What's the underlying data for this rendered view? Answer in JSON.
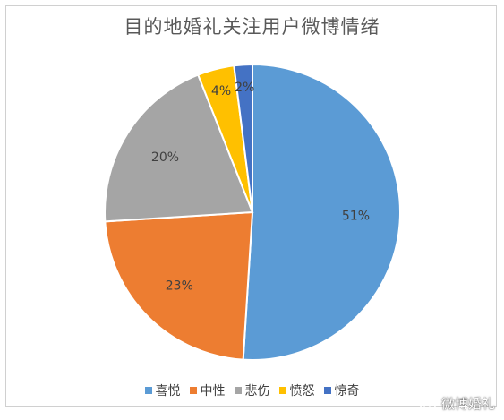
{
  "chart_data": {
    "type": "pie",
    "title": "目的地婚礼关注用户微博情绪",
    "categories": [
      "喜悦",
      "中性",
      "悲伤",
      "愤怒",
      "惊奇"
    ],
    "values": [
      51,
      23,
      20,
      4,
      2
    ],
    "labels": [
      "51%",
      "23%",
      "20%",
      "4%",
      "2%"
    ],
    "colors": [
      "#5b9bd5",
      "#ed7d31",
      "#a5a5a5",
      "#ffc000",
      "#4472c4"
    ],
    "legend_position": "bottom",
    "start": "top",
    "direction": "clockwise"
  },
  "watermark": {
    "text": "微博婚礼",
    "icon": "weibo-icon"
  }
}
